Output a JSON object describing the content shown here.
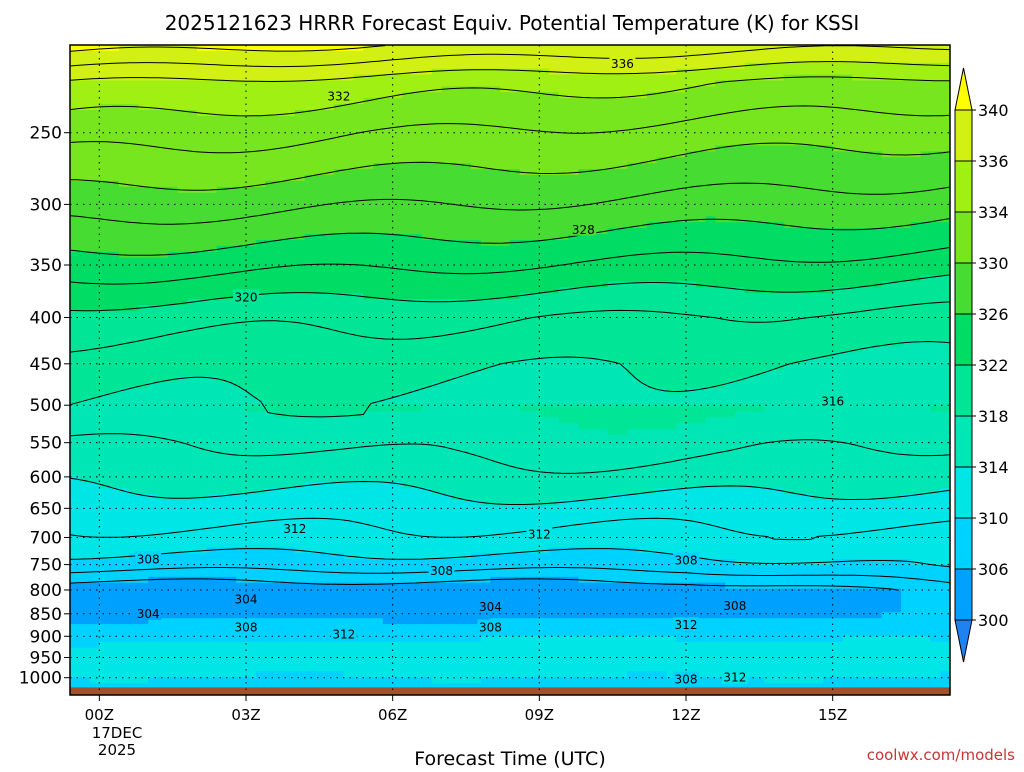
{
  "chart_data": {
    "type": "heatmap",
    "title": "2025121623 HRRR Forecast Equiv. Potential Temperature (K) for KSSI",
    "xlabel": "Forecast Time (UTC)",
    "ylabel": "",
    "x_ticks": [
      "00Z",
      "03Z",
      "06Z",
      "09Z",
      "12Z",
      "15Z"
    ],
    "x_date_line1": "17DEC",
    "x_date_line2": "2025",
    "x_range_hours": [
      -0.6,
      17.4
    ],
    "y_axis": "pressure (hPa), log scale, inverted",
    "y_ticks": [
      250,
      300,
      350,
      400,
      450,
      500,
      550,
      600,
      650,
      700,
      750,
      800,
      850,
      900,
      950,
      1000
    ],
    "y_range": [
      200,
      1045
    ],
    "colorbar": {
      "levels": [
        300,
        302,
        306,
        310,
        314,
        318,
        322,
        326,
        330,
        334,
        336,
        340
      ],
      "tick_labels": [
        "300",
        "306",
        "310",
        "314",
        "318",
        "322",
        "326",
        "330",
        "334",
        "336",
        "340"
      ],
      "colors": [
        "#1e82f0",
        "#00a0ff",
        "#00d2ff",
        "#00e6e6",
        "#00e6b4",
        "#00e696",
        "#00dc64",
        "#46dc32",
        "#78e61e",
        "#a0f014",
        "#d2f014",
        "#ffff00"
      ]
    },
    "contour_labels": [
      {
        "value": "336",
        "hour": 10.7,
        "p": 210
      },
      {
        "value": "332",
        "hour": 4.9,
        "p": 228
      },
      {
        "value": "328",
        "hour": 9.9,
        "p": 320
      },
      {
        "value": "320",
        "hour": 3.0,
        "p": 380
      },
      {
        "value": "316",
        "hour": 15.0,
        "p": 495
      },
      {
        "value": "312",
        "hour": 4.0,
        "p": 685
      },
      {
        "value": "312",
        "hour": 9.0,
        "p": 695
      },
      {
        "value": "308",
        "hour": 1.0,
        "p": 740
      },
      {
        "value": "308",
        "hour": 7.0,
        "p": 762
      },
      {
        "value": "308",
        "hour": 12.0,
        "p": 742
      },
      {
        "value": "304",
        "hour": 3.0,
        "p": 820
      },
      {
        "value": "304",
        "hour": 1.0,
        "p": 850
      },
      {
        "value": "304",
        "hour": 8.0,
        "p": 835
      },
      {
        "value": "308",
        "hour": 3.0,
        "p": 880
      },
      {
        "value": "308",
        "hour": 8.0,
        "p": 880
      },
      {
        "value": "308",
        "hour": 13.0,
        "p": 833
      },
      {
        "value": "312",
        "hour": 5.0,
        "p": 896
      },
      {
        "value": "312",
        "hour": 12.0,
        "p": 875
      },
      {
        "value": "308",
        "hour": 12.0,
        "p": 1005
      },
      {
        "value": "312",
        "hour": 13.0,
        "p": 1000
      }
    ],
    "terrain_color": "#a0522d",
    "credit": "coolwx.com/models"
  }
}
